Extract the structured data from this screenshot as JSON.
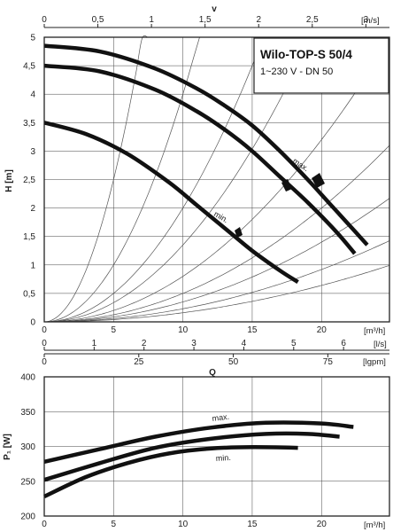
{
  "chart_data": [
    {
      "type": "line",
      "name": "pump-head-curves",
      "title": "Wilo-TOP-S 50/4",
      "subtitle": "1~230 V - DN 50",
      "xlabel": "[m³/h]",
      "ylabel": "H [m]",
      "xlim": [
        0,
        24.9
      ],
      "ylim": [
        0,
        5
      ],
      "x_ticks": [
        0,
        5,
        10,
        15,
        20
      ],
      "y_ticks": [
        0,
        0.5,
        1,
        1.5,
        2,
        2.5,
        3,
        3.5,
        4,
        4.5,
        5
      ],
      "y_tick_labels": [
        "0",
        "0,5",
        "1",
        "1,5",
        "2",
        "2,5",
        "3",
        "3,5",
        "4",
        "4,5",
        "5"
      ],
      "secondary_axes": {
        "velocity": {
          "label": "v",
          "unit": "[m/s]",
          "ticks": [
            0,
            0.5,
            1,
            1.5,
            2,
            2.5,
            3
          ],
          "tick_labels": [
            "0",
            "0,5",
            "1",
            "1,5",
            "2",
            "2,5",
            "3"
          ],
          "xmax": 3.22
        },
        "litres_per_second": {
          "unit": "[l/s]",
          "ticks": [
            0,
            1,
            2,
            3,
            4,
            5,
            6
          ],
          "tick_labels": [
            "0",
            "1",
            "2",
            "3",
            "4",
            "5",
            "6"
          ],
          "xmax": 6.92
        },
        "lgpm": {
          "label": "Q",
          "unit": "[lgpm]",
          "ticks": [
            0,
            25,
            50,
            75
          ],
          "tick_labels": [
            "0",
            "25",
            "50",
            "75"
          ],
          "xmax": 91.3
        }
      },
      "series": [
        {
          "name": "max.",
          "x": [
            0,
            4,
            8,
            11,
            13,
            15,
            17,
            19,
            20.5,
            22,
            23.3
          ],
          "y": [
            4.85,
            4.75,
            4.45,
            4.1,
            3.8,
            3.45,
            3.0,
            2.5,
            2.1,
            1.7,
            1.35
          ]
        },
        {
          "name": "",
          "x": [
            0,
            4,
            8,
            11,
            13,
            15,
            17,
            19,
            21,
            22.4
          ],
          "y": [
            4.5,
            4.4,
            4.08,
            3.7,
            3.38,
            3.0,
            2.55,
            2.1,
            1.6,
            1.2
          ]
        },
        {
          "name": "min.",
          "x": [
            0,
            3,
            6,
            9,
            11,
            13,
            15,
            17,
            18.3
          ],
          "y": [
            3.5,
            3.3,
            2.95,
            2.45,
            2.05,
            1.65,
            1.25,
            0.9,
            0.7
          ]
        }
      ],
      "system_curves": {
        "coefficients": [
          0.1,
          0.04,
          0.02,
          0.0135,
          0.008,
          0.005,
          0.0035,
          0.0023,
          0.0016
        ]
      }
    },
    {
      "type": "line",
      "name": "power-curves",
      "xlabel": "[m³/h]",
      "ylabel": "P₁ [W]",
      "xlim": [
        0,
        24.9
      ],
      "ylim": [
        200,
        400
      ],
      "x_ticks": [
        0,
        5,
        10,
        15,
        20
      ],
      "y_ticks": [
        200,
        250,
        300,
        350,
        400
      ],
      "series": [
        {
          "name": "max.",
          "x": [
            0,
            4,
            8,
            12,
            16,
            20,
            22.3
          ],
          "y": [
            278,
            296,
            314,
            327,
            334,
            333,
            328
          ]
        },
        {
          "name": "",
          "x": [
            0,
            4,
            8,
            12,
            16,
            19,
            21.3
          ],
          "y": [
            252,
            276,
            298,
            311,
            318,
            318,
            314
          ]
        },
        {
          "name": "min.",
          "x": [
            0,
            3,
            6,
            9,
            12,
            15,
            18.3
          ],
          "y": [
            228,
            256,
            276,
            290,
            297,
            299,
            298
          ]
        }
      ]
    }
  ],
  "labels": {
    "v_axis": "v",
    "q_axis": "Q",
    "m3h_unit": "[m³/h]",
    "ms_unit": "[m/s]",
    "ls_unit": "[l/s]",
    "lgpm_unit": "[lgpm]",
    "h_axis": "H [m]",
    "p_axis": "P₁ [W]",
    "max_label": "max.",
    "min_label": "min.",
    "title": "Wilo-TOP-S 50/4",
    "subtitle": "1~230 V - DN 50"
  }
}
